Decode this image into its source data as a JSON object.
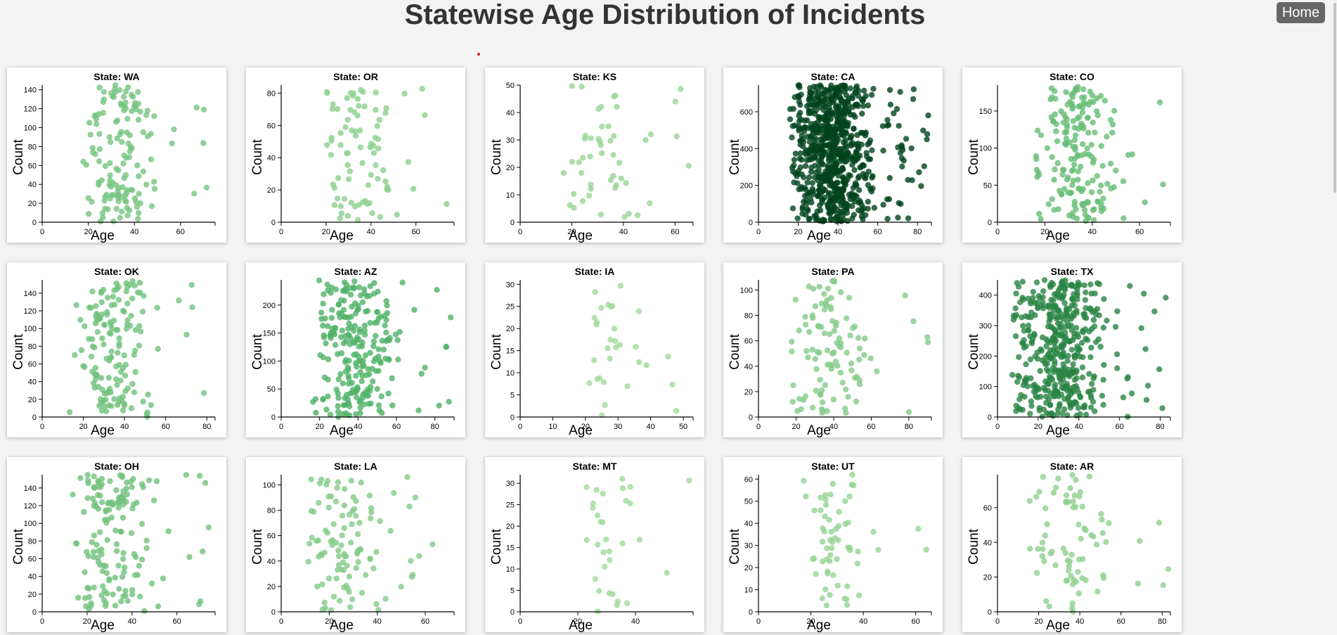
{
  "header": {
    "title": "Statewise Age Distribution of Incidents"
  },
  "nav": {
    "home_label": "Home"
  },
  "axis_labels": {
    "x": "Age",
    "y": "Count"
  },
  "palette": {
    "light": "#a1d99b",
    "mid": "#41ab5d",
    "dark": "#00441b"
  },
  "chart_data": [
    {
      "type": "scatter",
      "title": "State: WA",
      "xlim": [
        0,
        75
      ],
      "ylim": [
        0,
        145
      ],
      "xticks": [
        0,
        20,
        40,
        60
      ],
      "yticks": [
        0,
        20,
        40,
        60,
        80,
        100,
        120,
        140
      ],
      "n_points": 145,
      "age_range": [
        16,
        72
      ]
    },
    {
      "type": "scatter",
      "title": "State: OR",
      "xlim": [
        0,
        77
      ],
      "ylim": [
        0,
        85
      ],
      "xticks": [
        0,
        20,
        40,
        60
      ],
      "yticks": [
        0,
        20,
        40,
        60,
        80
      ],
      "n_points": 85,
      "age_range": [
        16,
        76
      ]
    },
    {
      "type": "scatter",
      "title": "State: KS",
      "xlim": [
        0,
        67
      ],
      "ylim": [
        0,
        50
      ],
      "xticks": [
        0,
        20,
        40,
        60
      ],
      "yticks": [
        0,
        10,
        20,
        30,
        40,
        50
      ],
      "n_points": 50,
      "age_range": [
        16,
        66
      ]
    },
    {
      "type": "scatter",
      "title": "State: CA",
      "xlim": [
        0,
        87
      ],
      "ylim": [
        0,
        745
      ],
      "xticks": [
        0,
        20,
        40,
        60,
        80
      ],
      "yticks": [
        0,
        200,
        400,
        600
      ],
      "n_points": 745,
      "age_range": [
        15,
        86
      ]
    },
    {
      "type": "scatter",
      "title": "State: CO",
      "xlim": [
        0,
        73
      ],
      "ylim": [
        0,
        185
      ],
      "xticks": [
        0,
        20,
        40,
        60
      ],
      "yticks": [
        0,
        50,
        100,
        150
      ],
      "n_points": 185,
      "age_range": [
        16,
        72
      ]
    },
    {
      "type": "scatter",
      "title": "State: OK",
      "xlim": [
        0,
        84
      ],
      "ylim": [
        0,
        155
      ],
      "xticks": [
        0,
        20,
        40,
        60,
        80
      ],
      "yticks": [
        0,
        20,
        40,
        60,
        80,
        100,
        120,
        140
      ],
      "n_points": 155,
      "age_range": [
        13,
        83
      ]
    },
    {
      "type": "scatter",
      "title": "State: AZ",
      "xlim": [
        0,
        90
      ],
      "ylim": [
        0,
        245
      ],
      "xticks": [
        0,
        20,
        40,
        60,
        80
      ],
      "yticks": [
        0,
        50,
        100,
        150,
        200
      ],
      "n_points": 245,
      "age_range": [
        15,
        89
      ]
    },
    {
      "type": "scatter",
      "title": "State: IA",
      "xlim": [
        0,
        53
      ],
      "ylim": [
        0,
        31
      ],
      "xticks": [
        0,
        10,
        20,
        30,
        40,
        50
      ],
      "yticks": [
        0,
        5,
        10,
        15,
        20,
        25,
        30
      ],
      "n_points": 31,
      "age_range": [
        18,
        53
      ]
    },
    {
      "type": "scatter",
      "title": "State: PA",
      "xlim": [
        0,
        92
      ],
      "ylim": [
        0,
        108
      ],
      "xticks": [
        0,
        20,
        40,
        60,
        80
      ],
      "yticks": [
        0,
        20,
        40,
        60,
        80,
        100
      ],
      "n_points": 108,
      "age_range": [
        13,
        91
      ]
    },
    {
      "type": "scatter",
      "title": "State: TX",
      "xlim": [
        0,
        85
      ],
      "ylim": [
        0,
        450
      ],
      "xticks": [
        0,
        20,
        40,
        60,
        80
      ],
      "yticks": [
        0,
        100,
        200,
        300,
        400
      ],
      "n_points": 450,
      "age_range": [
        6,
        84
      ]
    },
    {
      "type": "scatter",
      "title": "State: OH",
      "xlim": [
        0,
        77
      ],
      "ylim": [
        0,
        155
      ],
      "xticks": [
        0,
        20,
        40,
        60
      ],
      "yticks": [
        0,
        20,
        40,
        60,
        80,
        100,
        120,
        140
      ],
      "n_points": 155,
      "age_range": [
        12,
        76
      ]
    },
    {
      "type": "scatter",
      "title": "State: LA",
      "xlim": [
        0,
        72
      ],
      "ylim": [
        0,
        108
      ],
      "xticks": [
        0,
        20,
        40,
        60
      ],
      "yticks": [
        0,
        20,
        40,
        60,
        80,
        100
      ],
      "n_points": 108,
      "age_range": [
        6,
        71
      ]
    },
    {
      "type": "scatter",
      "title": "State: MT",
      "xlim": [
        0,
        60
      ],
      "ylim": [
        0,
        32
      ],
      "xticks": [
        0,
        20,
        40
      ],
      "yticks": [
        0,
        5,
        10,
        15,
        20,
        25,
        30
      ],
      "n_points": 32,
      "age_range": [
        18,
        59
      ]
    },
    {
      "type": "scatter",
      "title": "State: UT",
      "xlim": [
        0,
        66
      ],
      "ylim": [
        0,
        62
      ],
      "xticks": [
        0,
        20,
        40,
        60
      ],
      "yticks": [
        0,
        10,
        20,
        30,
        40,
        50,
        60
      ],
      "n_points": 62,
      "age_range": [
        16,
        65
      ]
    },
    {
      "type": "scatter",
      "title": "State: AR",
      "xlim": [
        0,
        84
      ],
      "ylim": [
        0,
        79
      ],
      "xticks": [
        0,
        20,
        40,
        60,
        80
      ],
      "yticks": [
        0,
        20,
        40,
        60
      ],
      "n_points": 79,
      "age_range": [
        14,
        83
      ]
    }
  ]
}
